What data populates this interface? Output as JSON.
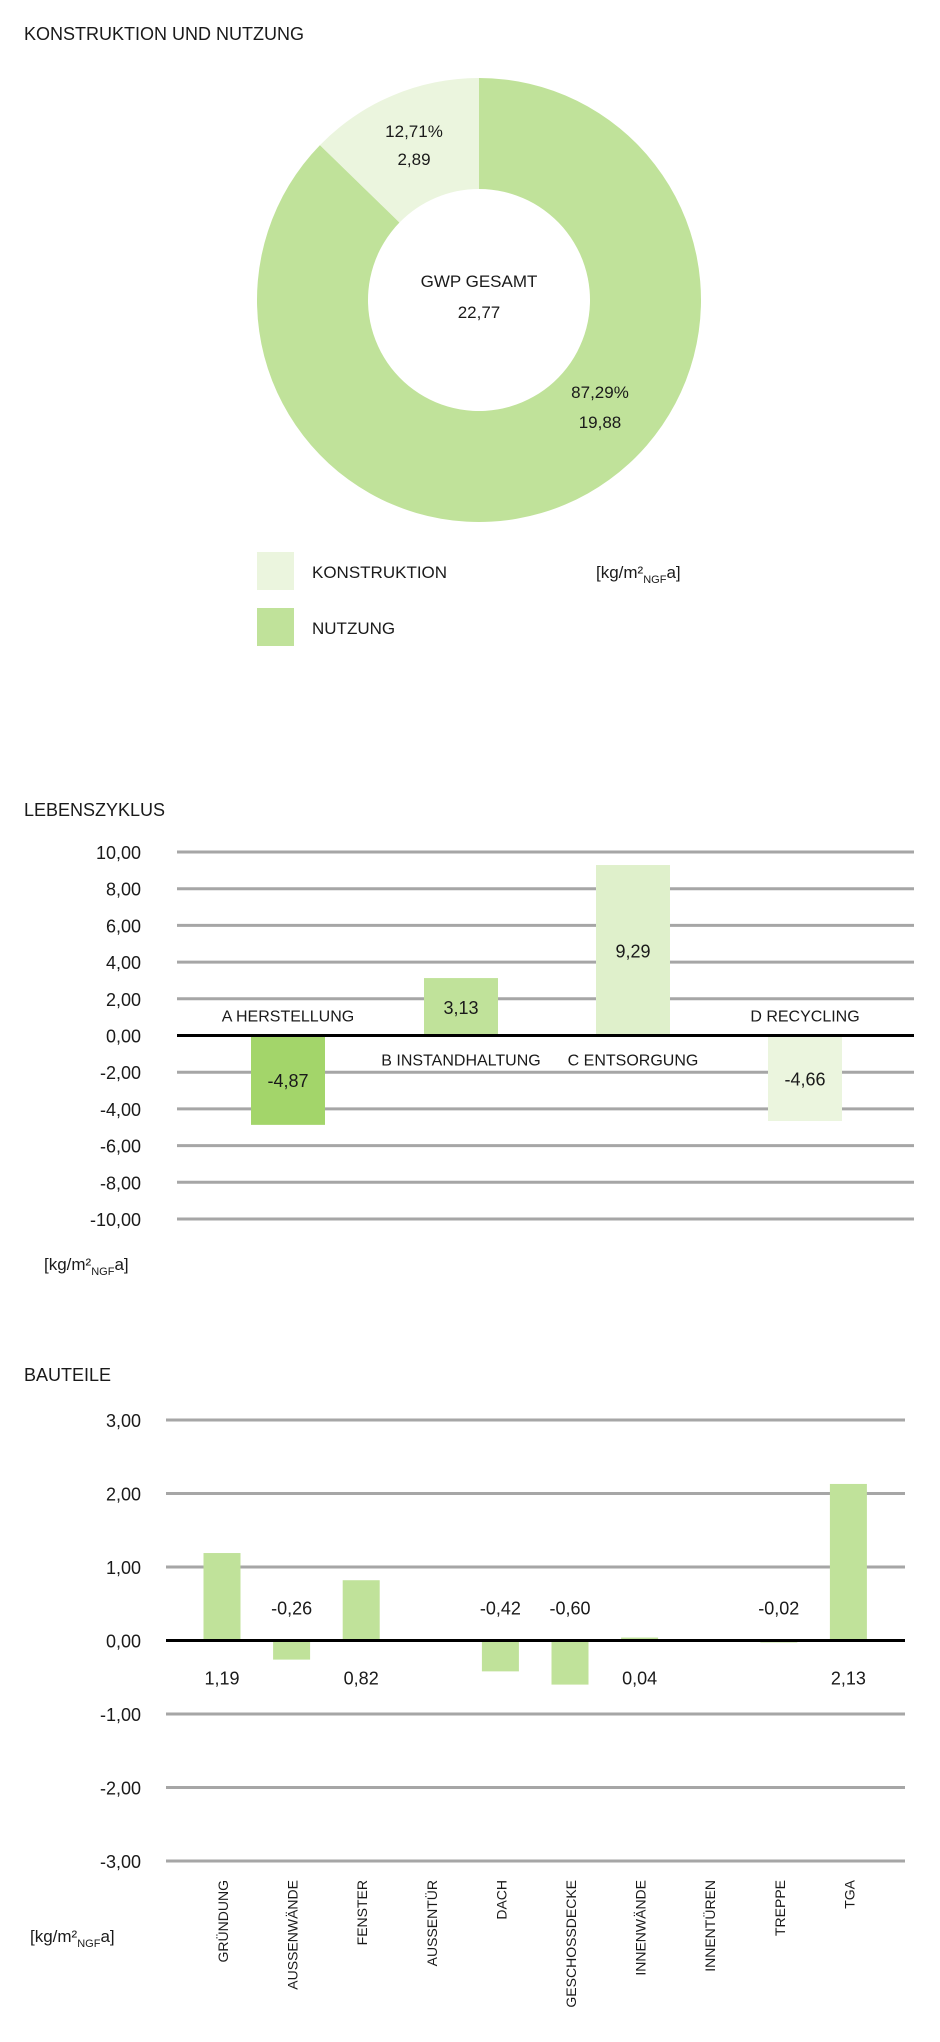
{
  "chart_data": [
    {
      "type": "pie",
      "title": "KONSTRUKTION UND NUTZUNG",
      "center_label": "GWP GESAMT",
      "center_value": "22,77",
      "unit": "[kg/m²NGFa]",
      "unit_main": "[kg/m²",
      "unit_sub": "NGF",
      "unit_end": "a]",
      "slices": [
        {
          "name": "KONSTRUKTION",
          "percent": 12.71,
          "value": 2.89,
          "percent_label": "12,71%",
          "value_label": "2,89",
          "color": "#ebf5de"
        },
        {
          "name": "NUTZUNG",
          "percent": 87.29,
          "value": 19.88,
          "percent_label": "87,29%",
          "value_label": "19,88",
          "color": "#c0e29a"
        }
      ],
      "legend": [
        "KONSTRUKTION",
        "NUTZUNG"
      ]
    },
    {
      "type": "bar",
      "title": "LEBENSZYKLUS",
      "categories": [
        "A HERSTELLUNG",
        "B INSTANDHALTUNG",
        "C ENTSORGUNG",
        "D RECYCLING"
      ],
      "values": [
        -4.87,
        3.13,
        9.29,
        -4.66
      ],
      "value_labels": [
        "-4,87",
        "3,13",
        "9,29",
        "-4,66"
      ],
      "colors": [
        "#a3d56a",
        "#c0e29a",
        "#dff0cb",
        "#ebf5de"
      ],
      "ylim": [
        -10,
        10
      ],
      "yticks": [
        10,
        8,
        6,
        4,
        2,
        0,
        -2,
        -4,
        -6,
        -8,
        -10
      ],
      "ytick_labels": [
        "10,00",
        "8,00",
        "6,00",
        "4,00",
        "2,00",
        "0,00",
        "-2,00",
        "-4,00",
        "-6,00",
        "-8,00",
        "-10,00"
      ],
      "ylabel_main": "[kg/m²",
      "ylabel_sub": "NGF",
      "ylabel_end": "a]",
      "grid": true
    },
    {
      "type": "bar",
      "title": "BAUTEILE",
      "categories": [
        "GRÜNDUNG",
        "AUSSENWÄNDE",
        "FENSTER",
        "AUSSENTÜR",
        "DACH",
        "GESCHOSSDECKE",
        "INNENWÄNDE",
        "INNENTÜREN",
        "TREPPE",
        "TGA"
      ],
      "values": [
        1.19,
        -0.26,
        0.82,
        null,
        -0.42,
        -0.6,
        0.04,
        null,
        -0.02,
        2.13
      ],
      "value_labels": [
        "1,19",
        "-0,26",
        "0,82",
        null,
        "-0,42",
        "-0,60",
        "0,04",
        null,
        "-0,02",
        "2,13"
      ],
      "color": "#c0e29a",
      "ylim": [
        -3,
        3
      ],
      "yticks": [
        3,
        2,
        1,
        0,
        -1,
        -2,
        -3
      ],
      "ytick_labels": [
        "3,00",
        "2,00",
        "1,00",
        "0,00",
        "-1,00",
        "-2,00",
        "-3,00"
      ],
      "ylabel_main": "[kg/m²",
      "ylabel_sub": "NGF",
      "ylabel_end": "a]",
      "grid": true
    }
  ]
}
